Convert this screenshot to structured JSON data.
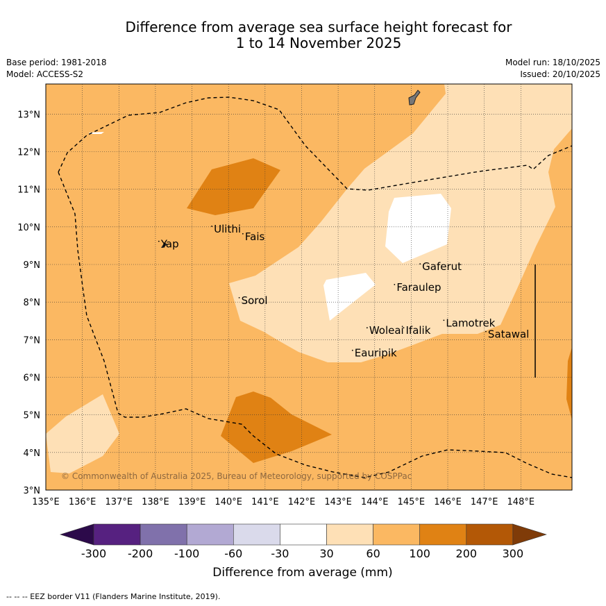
{
  "title": {
    "line1": "Difference from average sea surface height forecast for",
    "line2": "1 to 14 November 2025"
  },
  "meta": {
    "base_period": "Base period: 1981-2018",
    "model": "Model: ACCESS-S2",
    "model_run": "Model run: 18/10/2025",
    "issued": "Issued: 20/10/2025"
  },
  "map": {
    "lon_min": 135,
    "lon_max": 149.4,
    "lat_min": 3,
    "lat_max": 13.8,
    "lon_ticks": [
      "135°E",
      "136°E",
      "137°E",
      "138°E",
      "139°E",
      "140°E",
      "141°E",
      "142°E",
      "143°E",
      "144°E",
      "145°E",
      "146°E",
      "147°E",
      "148°E"
    ],
    "lat_ticks": [
      "3°N",
      "4°N",
      "5°N",
      "6°N",
      "7°N",
      "8°N",
      "9°N",
      "10°N",
      "11°N",
      "12°N",
      "13°N"
    ],
    "places": [
      {
        "name": "Yap",
        "lon": 138.15,
        "lat": 9.45
      },
      {
        "name": "Ulithi",
        "lon": 139.6,
        "lat": 9.85
      },
      {
        "name": "Fais",
        "lon": 140.45,
        "lat": 9.65
      },
      {
        "name": "Gaferut",
        "lon": 145.3,
        "lat": 8.85
      },
      {
        "name": "Faraulep",
        "lon": 144.6,
        "lat": 8.3
      },
      {
        "name": "Sorol",
        "lon": 140.35,
        "lat": 7.95
      },
      {
        "name": "Woleai",
        "lon": 143.85,
        "lat": 7.15
      },
      {
        "name": "Ifalik",
        "lon": 144.85,
        "lat": 7.15
      },
      {
        "name": "Lamotrek",
        "lon": 145.95,
        "lat": 7.35
      },
      {
        "name": "Satawal",
        "lon": 147.1,
        "lat": 7.05
      },
      {
        "name": "Eauripik",
        "lon": 143.45,
        "lat": 6.55
      }
    ],
    "copyright": "© Commonwealth of Australia 2025, Bureau of Meteorology, supported by COSPPac"
  },
  "legend": {
    "labels": [
      "-300",
      "-200",
      "-100",
      "-60",
      "-30",
      "30",
      "60",
      "100",
      "200",
      "300"
    ],
    "colors": [
      "#2c0a4a",
      "#562180",
      "#8071ab",
      "#b2a9d3",
      "#dadaeb",
      "#ffffff",
      "#fee0b6",
      "#fbb862",
      "#e08214",
      "#b35806",
      "#7f3b08"
    ],
    "title": "Difference from average (mm)"
  },
  "footer": "--  --  -- EEZ border V11 (Flanders Marine Institute, 2019)."
}
